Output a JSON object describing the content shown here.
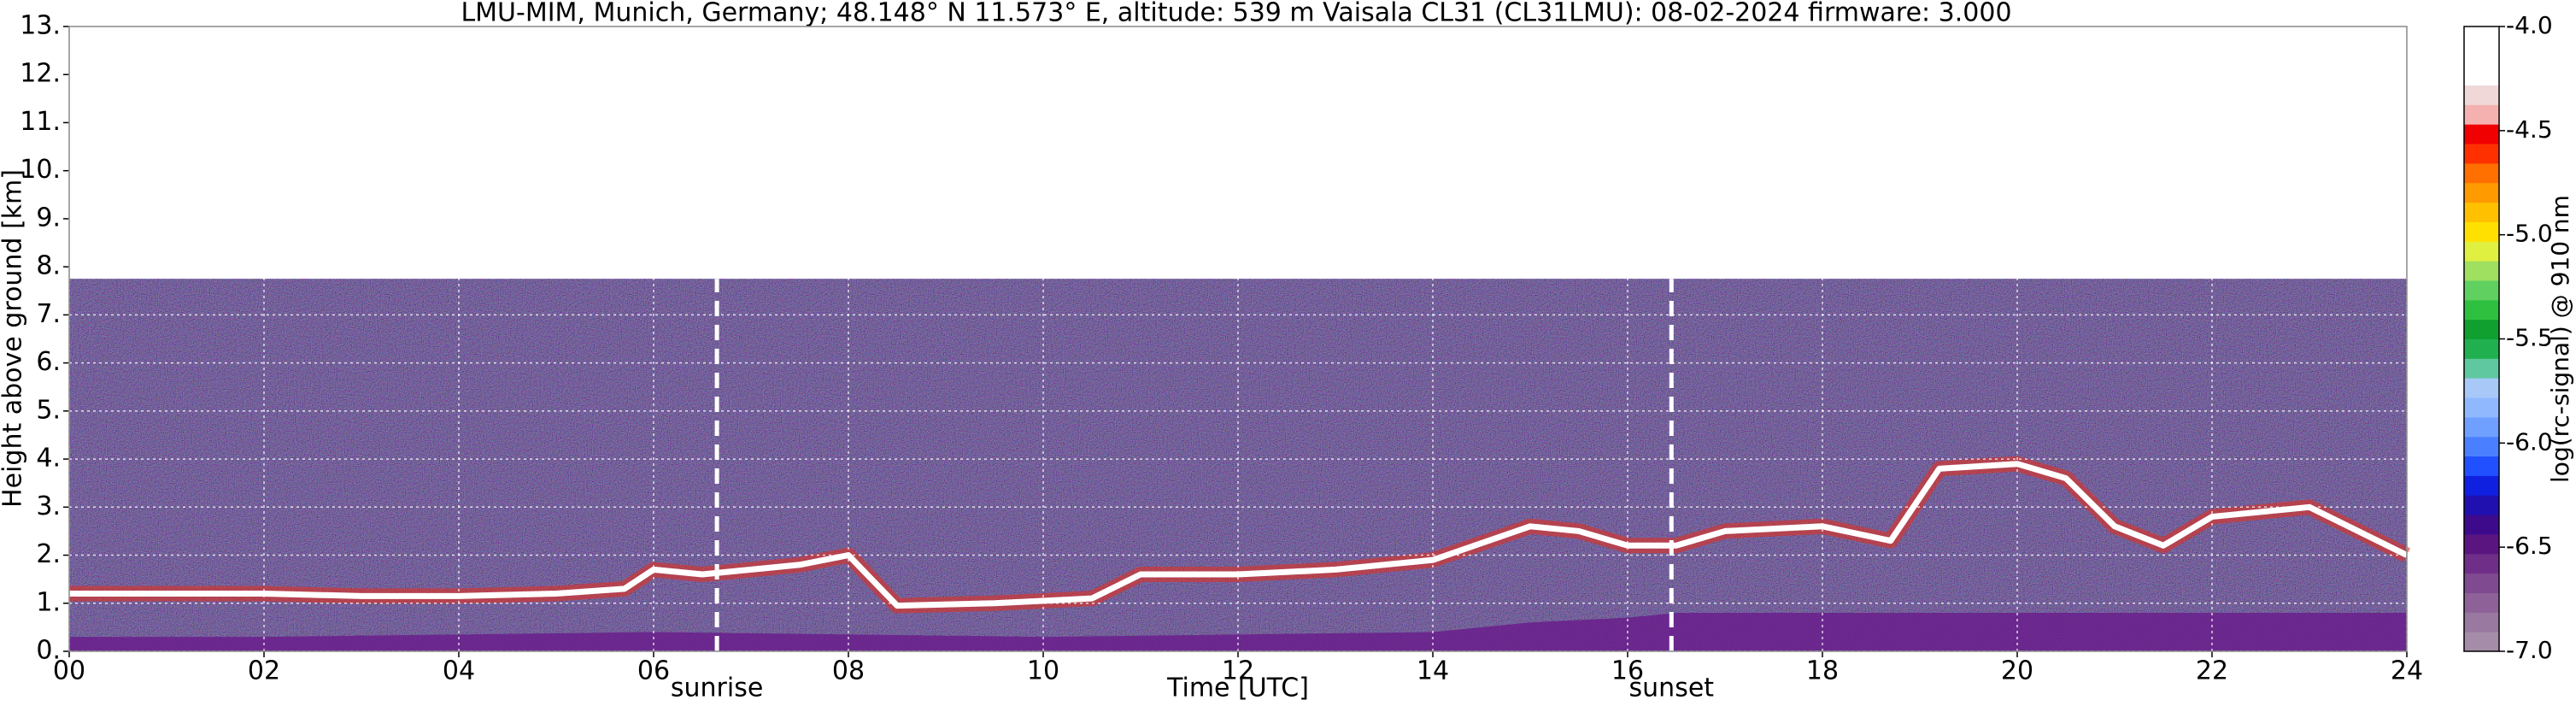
{
  "chart_data": {
    "type": "heatmap",
    "title": "LMU-MIM, Munich, Germany; 48.148° N 11.573° E, altitude: 539 m    Vaisala CL31 (CL31LMU): 08-02-2024    firmware: 3.000",
    "x_label": "Time [UTC]",
    "y_label": "Height above ground [km]",
    "xlim": [
      0,
      24
    ],
    "ylim": [
      0,
      13
    ],
    "xticks": [
      {
        "value": 0,
        "label": "00"
      },
      {
        "value": 2,
        "label": "02"
      },
      {
        "value": 4,
        "label": "04"
      },
      {
        "value": 6,
        "label": "06"
      },
      {
        "value": 8,
        "label": "08"
      },
      {
        "value": 10,
        "label": "10"
      },
      {
        "value": 12,
        "label": "12"
      },
      {
        "value": 14,
        "label": "14"
      },
      {
        "value": 16,
        "label": "16"
      },
      {
        "value": 18,
        "label": "18"
      },
      {
        "value": 20,
        "label": "20"
      },
      {
        "value": 22,
        "label": "22"
      },
      {
        "value": 24,
        "label": "24"
      }
    ],
    "yticks": [
      {
        "value": 0,
        "label": "0."
      },
      {
        "value": 1,
        "label": "1."
      },
      {
        "value": 2,
        "label": "2."
      },
      {
        "value": 3,
        "label": "3."
      },
      {
        "value": 4,
        "label": "4."
      },
      {
        "value": 5,
        "label": "5."
      },
      {
        "value": 6,
        "label": "6."
      },
      {
        "value": 7,
        "label": "7."
      },
      {
        "value": 8,
        "label": "8."
      },
      {
        "value": 9,
        "label": "9."
      },
      {
        "value": 10,
        "label": "10."
      },
      {
        "value": 11,
        "label": "11."
      },
      {
        "value": 12,
        "label": "12."
      },
      {
        "value": 13,
        "label": "13."
      }
    ],
    "grid": true,
    "signal_top": 7.75,
    "layer": {
      "color": "#ffffff",
      "x": [
        0,
        1,
        2,
        3,
        4,
        5,
        5.7,
        6,
        6.5,
        7,
        7.5,
        8,
        8.5,
        9.5,
        10.5,
        11,
        12,
        13,
        14,
        15,
        15.5,
        16,
        16.5,
        17,
        18,
        18.7,
        19.2,
        20,
        20.5,
        21,
        21.5,
        22,
        23,
        24
      ],
      "values": [
        1.2,
        1.2,
        1.2,
        1.15,
        1.15,
        1.2,
        1.3,
        1.7,
        1.6,
        1.7,
        1.8,
        2.0,
        0.95,
        1.0,
        1.1,
        1.6,
        1.6,
        1.7,
        1.9,
        2.6,
        2.5,
        2.2,
        2.2,
        2.5,
        2.6,
        2.3,
        3.8,
        3.9,
        3.6,
        2.6,
        2.2,
        2.8,
        3.0,
        2.0
      ]
    },
    "ground_layer": {
      "color": "#6a1e8c",
      "x": [
        0,
        2,
        4,
        6,
        8,
        10,
        12,
        14,
        15,
        16,
        16.5,
        18,
        20,
        22,
        24
      ],
      "values": [
        0.3,
        0.3,
        0.35,
        0.4,
        0.35,
        0.3,
        0.35,
        0.4,
        0.6,
        0.7,
        0.8,
        0.8,
        0.8,
        0.8,
        0.8
      ]
    },
    "annotations": [
      {
        "x": 6.65,
        "text": "sunrise"
      },
      {
        "x": 16.45,
        "text": "sunset"
      }
    ],
    "colorbar": {
      "label": "log(rc-signal) @ 910 nm",
      "lim": [
        -7,
        -4
      ],
      "ticks": [
        {
          "value": -7,
          "label": "-7.0"
        },
        {
          "value": -6.5,
          "label": "-6.5"
        },
        {
          "value": -6,
          "label": "-6.0"
        },
        {
          "value": -5.5,
          "label": "-5.5"
        },
        {
          "value": -5,
          "label": "-5.0"
        },
        {
          "value": -4.5,
          "label": "-4.5"
        },
        {
          "value": -4,
          "label": "-4.0"
        }
      ],
      "colors": [
        "#a58ca8",
        "#9a79a0",
        "#8e6299",
        "#7f4a90",
        "#6f2f89",
        "#5b1580",
        "#3d0a8c",
        "#2010b0",
        "#1020e0",
        "#2050ff",
        "#4a80ff",
        "#70a0ff",
        "#90b8ff",
        "#a8c8f8",
        "#60c8a0",
        "#20b050",
        "#10a030",
        "#30c040",
        "#60d060",
        "#a0e060",
        "#e0f040",
        "#ffe000",
        "#ffc000",
        "#ff9a00",
        "#ff7000",
        "#ff3000",
        "#f00000",
        "#f5b0b0",
        "#f0d8d8",
        "#ffffff",
        "#ffffff",
        "#ffffff"
      ]
    }
  }
}
